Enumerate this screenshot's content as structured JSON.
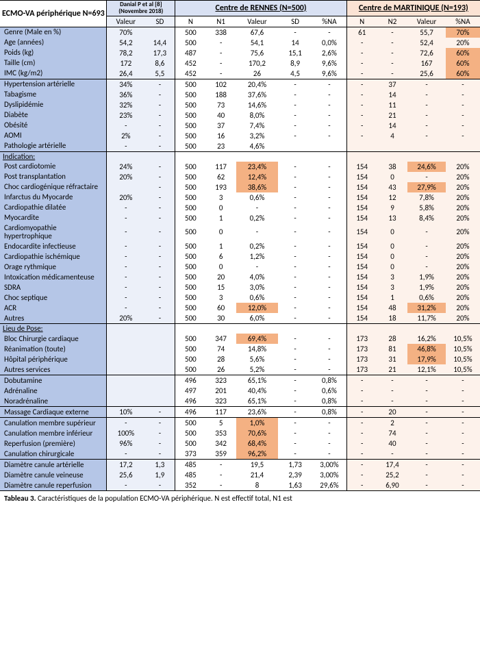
{
  "headers": {
    "main_title": "ECMO-VA périphérique N=693",
    "danial": "Danial P et al [8] (Novembre 2018)",
    "rennes": "Centre de RENNES (N=500)",
    "martinique": "Centre de MARTINIQUE (N=193)",
    "sub": {
      "valeur": "Valeur",
      "sd": "SD",
      "n": "N",
      "n1": "N1",
      "n2": "N2",
      "pctna": "%NA"
    }
  },
  "sections": {
    "indication": "Indication:",
    "lieu": "Lieu de Pose:"
  },
  "caption": {
    "lead": "Tableau  3.",
    "rest": "  Caractéristiques  de  la  population  ECMO-VA  périphérique.  N  est  effectif  total,  N1  est"
  },
  "rows": [
    {
      "group": true,
      "label": "Genre (Male en %)",
      "d": {
        "val": "70%",
        "sd": ""
      },
      "r": {
        "n": "500",
        "n1": "338",
        "val": "67,6",
        "sd": "-",
        "na": "-"
      },
      "m": {
        "n": "61",
        "n2": "-",
        "val": "55,7",
        "na": "70%",
        "hl": [
          "na"
        ]
      }
    },
    {
      "label": "Age (années)",
      "d": {
        "val": "54,2",
        "sd": "14,4"
      },
      "r": {
        "n": "500",
        "n1": "-",
        "val": "54,1",
        "sd": "14",
        "na": "0,0%"
      },
      "m": {
        "n": "-",
        "n2": "-",
        "val": "52,4",
        "na": "20%"
      }
    },
    {
      "label": "Poids (kg)",
      "d": {
        "val": "78,2",
        "sd": "17,3"
      },
      "r": {
        "n": "487",
        "n1": "-",
        "val": "75,6",
        "sd": "15,1",
        "na": "2,6%"
      },
      "m": {
        "n": "-",
        "n2": "-",
        "val": "72,6",
        "na": "60%",
        "hl": [
          "na"
        ]
      }
    },
    {
      "label": "Taille (cm)",
      "d": {
        "val": "172",
        "sd": "8,6"
      },
      "r": {
        "n": "452",
        "n1": "-",
        "val": "170,2",
        "sd": "8,9",
        "na": "9,6%"
      },
      "m": {
        "n": "-",
        "n2": "-",
        "val": "167",
        "na": "60%",
        "hl": [
          "na"
        ]
      }
    },
    {
      "label": "IMC (kg/m2)",
      "d": {
        "val": "26,4",
        "sd": "5,5"
      },
      "r": {
        "n": "452",
        "n1": "-",
        "val": "26",
        "sd": "4,5",
        "na": "9,6%"
      },
      "m": {
        "n": "-",
        "n2": "-",
        "val": "25,6",
        "na": "60%",
        "hl": [
          "na"
        ]
      }
    },
    {
      "group": true,
      "label": "Hypertension artérielle",
      "d": {
        "val": "34%",
        "sd": "-"
      },
      "r": {
        "n": "500",
        "n1": "102",
        "val": "20,4%",
        "sd": "-",
        "na": "-"
      },
      "m": {
        "n": "-",
        "n2": "37",
        "val": "-",
        "na": "-"
      }
    },
    {
      "label": "Tabagisme",
      "d": {
        "val": "36%",
        "sd": "-"
      },
      "r": {
        "n": "500",
        "n1": "188",
        "val": "37,6%",
        "sd": "-",
        "na": "-"
      },
      "m": {
        "n": "-",
        "n2": "14",
        "val": "-",
        "na": "-"
      }
    },
    {
      "label": "Dyslipidémie",
      "d": {
        "val": "32%",
        "sd": "-"
      },
      "r": {
        "n": "500",
        "n1": "73",
        "val": "14,6%",
        "sd": "-",
        "na": "-"
      },
      "m": {
        "n": "-",
        "n2": "11",
        "val": "-",
        "na": "-"
      }
    },
    {
      "label": "Diabète",
      "d": {
        "val": "23%",
        "sd": "-"
      },
      "r": {
        "n": "500",
        "n1": "40",
        "val": "8,0%",
        "sd": "-",
        "na": "-"
      },
      "m": {
        "n": "-",
        "n2": "21",
        "val": "-",
        "na": "-"
      }
    },
    {
      "label": "Obésité",
      "d": {
        "val": "-",
        "sd": "-"
      },
      "r": {
        "n": "500",
        "n1": "37",
        "val": "7,4%",
        "sd": "-",
        "na": "-"
      },
      "m": {
        "n": "-",
        "n2": "14",
        "val": "-",
        "na": "-"
      }
    },
    {
      "label": "AOMI",
      "d": {
        "val": "2%",
        "sd": "-"
      },
      "r": {
        "n": "500",
        "n1": "16",
        "val": "3,2%",
        "sd": "-",
        "na": "-"
      },
      "m": {
        "n": "-",
        "n2": "4",
        "val": "-",
        "na": "-"
      }
    },
    {
      "label": "Pathologie artérielle",
      "d": {
        "val": "-",
        "sd": "-"
      },
      "r": {
        "n": "500",
        "n1": "23",
        "val": "4,6%",
        "sd": "",
        "na": ""
      },
      "m": {
        "n": "",
        "n2": "",
        "val": "",
        "na": ""
      }
    },
    {
      "group": true,
      "section": "indication"
    },
    {
      "label": "Post cardiotomie",
      "d": {
        "val": "24%",
        "sd": "-"
      },
      "r": {
        "n": "500",
        "n1": "117",
        "val": "23,4%",
        "sd": "-",
        "na": "-",
        "hl": [
          "val"
        ]
      },
      "m": {
        "n": "154",
        "n2": "38",
        "val": "24,6%",
        "na": "20%",
        "hl": [
          "val"
        ]
      }
    },
    {
      "label": "Post transplantation",
      "d": {
        "val": "20%",
        "sd": "-"
      },
      "r": {
        "n": "500",
        "n1": "62",
        "val": "12,4%",
        "sd": "-",
        "na": "-",
        "hl": [
          "val"
        ]
      },
      "m": {
        "n": "154",
        "n2": "0",
        "val": "-",
        "na": "20%"
      }
    },
    {
      "label": "Choc cardiogénique réfractaire",
      "d": {
        "val": "",
        "sd": "-"
      },
      "r": {
        "n": "500",
        "n1": "193",
        "val": "38,6%",
        "sd": "-",
        "na": "-",
        "hl": [
          "val"
        ]
      },
      "m": {
        "n": "154",
        "n2": "43",
        "val": "27,9%",
        "na": "20%",
        "hl": [
          "val"
        ]
      }
    },
    {
      "label": "Infarctus du Myocarde",
      "d": {
        "val": "20%",
        "sd": "-"
      },
      "r": {
        "n": "500",
        "n1": "3",
        "val": "0,6%",
        "sd": "-",
        "na": "-"
      },
      "m": {
        "n": "154",
        "n2": "12",
        "val": "7,8%",
        "na": "20%"
      }
    },
    {
      "label": "Cardiopathie dilatée",
      "d": {
        "val": "-",
        "sd": "-"
      },
      "r": {
        "n": "500",
        "n1": "0",
        "val": "-",
        "sd": "-",
        "na": "-"
      },
      "m": {
        "n": "154",
        "n2": "9",
        "val": "5,8%",
        "na": "20%"
      }
    },
    {
      "label": "Myocardite",
      "d": {
        "val": "-",
        "sd": "-"
      },
      "r": {
        "n": "500",
        "n1": "1",
        "val": "0,2%",
        "sd": "-",
        "na": "-"
      },
      "m": {
        "n": "154",
        "n2": "13",
        "val": "8,4%",
        "na": "20%"
      }
    },
    {
      "label": "Cardiomyopathie hypertrophique",
      "d": {
        "val": "-",
        "sd": "-"
      },
      "r": {
        "n": "500",
        "n1": "0",
        "val": "-",
        "sd": "-",
        "na": "-"
      },
      "m": {
        "n": "154",
        "n2": "0",
        "val": "-",
        "na": "20%"
      }
    },
    {
      "label": "Endocardite infectieuse",
      "d": {
        "val": "-",
        "sd": "-"
      },
      "r": {
        "n": "500",
        "n1": "1",
        "val": "0,2%",
        "sd": "-",
        "na": "-"
      },
      "m": {
        "n": "154",
        "n2": "0",
        "val": "-",
        "na": "20%"
      }
    },
    {
      "label": "Cardiopathie ischémique",
      "d": {
        "val": "-",
        "sd": "-"
      },
      "r": {
        "n": "500",
        "n1": "6",
        "val": "1,2%",
        "sd": "-",
        "na": "-"
      },
      "m": {
        "n": "154",
        "n2": "0",
        "val": "-",
        "na": "20%"
      }
    },
    {
      "label": "Orage rythmique",
      "d": {
        "val": "-",
        "sd": "-"
      },
      "r": {
        "n": "500",
        "n1": "0",
        "val": "-",
        "sd": "-",
        "na": "-"
      },
      "m": {
        "n": "154",
        "n2": "0",
        "val": "-",
        "na": "20%"
      }
    },
    {
      "label": "Intoxication médicamenteuse",
      "d": {
        "val": "-",
        "sd": "-"
      },
      "r": {
        "n": "500",
        "n1": "20",
        "val": "4,0%",
        "sd": "-",
        "na": "-"
      },
      "m": {
        "n": "154",
        "n2": "3",
        "val": "1,9%",
        "na": "20%"
      }
    },
    {
      "label": "SDRA",
      "d": {
        "val": "-",
        "sd": "-"
      },
      "r": {
        "n": "500",
        "n1": "15",
        "val": "3,0%",
        "sd": "-",
        "na": "-"
      },
      "m": {
        "n": "154",
        "n2": "3",
        "val": "1,9%",
        "na": "20%"
      }
    },
    {
      "label": "Choc septique",
      "d": {
        "val": "-",
        "sd": "-"
      },
      "r": {
        "n": "500",
        "n1": "3",
        "val": "0,6%",
        "sd": "-",
        "na": "-"
      },
      "m": {
        "n": "154",
        "n2": "1",
        "val": "0,6%",
        "na": "20%"
      }
    },
    {
      "label": "ACR",
      "d": {
        "val": "-",
        "sd": "-"
      },
      "r": {
        "n": "500",
        "n1": "60",
        "val": "12,0%",
        "sd": "-",
        "na": "-",
        "hl": [
          "val"
        ]
      },
      "m": {
        "n": "154",
        "n2": "48",
        "val": "31,2%",
        "na": "20%",
        "hl": [
          "val"
        ]
      }
    },
    {
      "label": "Autres",
      "d": {
        "val": "20%",
        "sd": "-"
      },
      "r": {
        "n": "500",
        "n1": "30",
        "val": "6,0%",
        "sd": "-",
        "na": "-"
      },
      "m": {
        "n": "154",
        "n2": "18",
        "val": "11,7%",
        "na": "20%"
      }
    },
    {
      "group": true,
      "section": "lieu"
    },
    {
      "label": "Bloc Chirurgie cardiaque",
      "d": {
        "val": "",
        "sd": ""
      },
      "r": {
        "n": "500",
        "n1": "347",
        "val": "69,4%",
        "sd": "-",
        "na": "-",
        "hl": [
          "val"
        ]
      },
      "m": {
        "n": "173",
        "n2": "28",
        "val": "16,2%",
        "na": "10,5%"
      }
    },
    {
      "label": "Réanimation (toute)",
      "d": {
        "val": "",
        "sd": ""
      },
      "r": {
        "n": "500",
        "n1": "74",
        "val": "14,8%",
        "sd": "-",
        "na": "-"
      },
      "m": {
        "n": "173",
        "n2": "81",
        "val": "46,8%",
        "na": "10,5%",
        "hl": [
          "val"
        ]
      }
    },
    {
      "label": "Hôpital périphérique",
      "d": {
        "val": "",
        "sd": ""
      },
      "r": {
        "n": "500",
        "n1": "28",
        "val": "5,6%",
        "sd": "-",
        "na": "-"
      },
      "m": {
        "n": "173",
        "n2": "31",
        "val": "17,9%",
        "na": "10,5%",
        "hl": [
          "val"
        ]
      }
    },
    {
      "label": "Autres services",
      "d": {
        "val": "",
        "sd": ""
      },
      "r": {
        "n": "500",
        "n1": "26",
        "val": "5,2%",
        "sd": "-",
        "na": "-"
      },
      "m": {
        "n": "173",
        "n2": "21",
        "val": "12,1%",
        "na": "10,5%"
      }
    },
    {
      "group": true,
      "label": "Dobutamine",
      "d": {
        "val": "",
        "sd": ""
      },
      "r": {
        "n": "496",
        "n1": "323",
        "val": "65,1%",
        "sd": "-",
        "na": "0,8%"
      },
      "m": {
        "n": "-",
        "n2": "-",
        "val": "-",
        "na": "-"
      }
    },
    {
      "label": "Adrénaline",
      "d": {
        "val": "",
        "sd": ""
      },
      "r": {
        "n": "497",
        "n1": "201",
        "val": "40,4%",
        "sd": "-",
        "na": "0,6%"
      },
      "m": {
        "n": "-",
        "n2": "-",
        "val": "-",
        "na": "-"
      }
    },
    {
      "label": "Noradrénaline",
      "d": {
        "val": "",
        "sd": ""
      },
      "r": {
        "n": "496",
        "n1": "323",
        "val": "65,1%",
        "sd": "-",
        "na": "0,8%"
      },
      "m": {
        "n": "-",
        "n2": "-",
        "val": "-",
        "na": "-"
      }
    },
    {
      "group": true,
      "label": "Massage Cardiaque externe",
      "d": {
        "val": "10%",
        "sd": "-"
      },
      "r": {
        "n": "496",
        "n1": "117",
        "val": "23,6%",
        "sd": "-",
        "na": "0,8%"
      },
      "m": {
        "n": "-",
        "n2": "20",
        "val": "-",
        "na": "-"
      }
    },
    {
      "group": true,
      "label": "Canulation membre supérieur",
      "d": {
        "val": "-",
        "sd": "-"
      },
      "r": {
        "n": "500",
        "n1": "5",
        "val": "1,0%",
        "sd": "-",
        "na": "-",
        "hl": [
          "val"
        ]
      },
      "m": {
        "n": "-",
        "n2": "2",
        "val": "-",
        "na": "-"
      }
    },
    {
      "label": "Canulation membre inférieur",
      "d": {
        "val": "100%",
        "sd": "-"
      },
      "r": {
        "n": "500",
        "n1": "353",
        "val": "70,6%",
        "sd": "-",
        "na": "-",
        "hl": [
          "val"
        ]
      },
      "m": {
        "n": "-",
        "n2": "74",
        "val": "-",
        "na": "-"
      }
    },
    {
      "label": "Reperfusion (première)",
      "d": {
        "val": "96%",
        "sd": "-"
      },
      "r": {
        "n": "500",
        "n1": "342",
        "val": "68,4%",
        "sd": "-",
        "na": "-",
        "hl": [
          "val"
        ]
      },
      "m": {
        "n": "-",
        "n2": "40",
        "val": "-",
        "na": "-"
      }
    },
    {
      "label": "Canulation chirurgicale",
      "d": {
        "val": "-",
        "sd": "-"
      },
      "r": {
        "n": "373",
        "n1": "359",
        "val": "96,2%",
        "sd": "-",
        "na": "-",
        "hl": [
          "val"
        ]
      },
      "m": {
        "n": "-",
        "n2": "-",
        "val": "-",
        "na": "-"
      }
    },
    {
      "group": true,
      "label": "Diamètre canule artérielle",
      "d": {
        "val": "17,2",
        "sd": "1,3"
      },
      "r": {
        "n": "485",
        "n1": "-",
        "val": "19,5",
        "sd": "1,73",
        "na": "3,00%"
      },
      "m": {
        "n": "-",
        "n2": "17,4",
        "val": "-",
        "na": "-"
      }
    },
    {
      "label": "Diamètre canule veineuse",
      "d": {
        "val": "25,6",
        "sd": "1,9"
      },
      "r": {
        "n": "485",
        "n1": "-",
        "val": "21,4",
        "sd": "2,39",
        "na": "3,00%"
      },
      "m": {
        "n": "-",
        "n2": "25,2",
        "val": "-",
        "na": "-"
      }
    },
    {
      "label": "Diamètre canule reperfusion",
      "d": {
        "val": "-",
        "sd": "-"
      },
      "r": {
        "n": "352",
        "n1": "-",
        "val": "8",
        "sd": "1,63",
        "na": "29,6%"
      },
      "m": {
        "n": "-",
        "n2": "6,90",
        "val": "-",
        "na": "-"
      }
    }
  ]
}
